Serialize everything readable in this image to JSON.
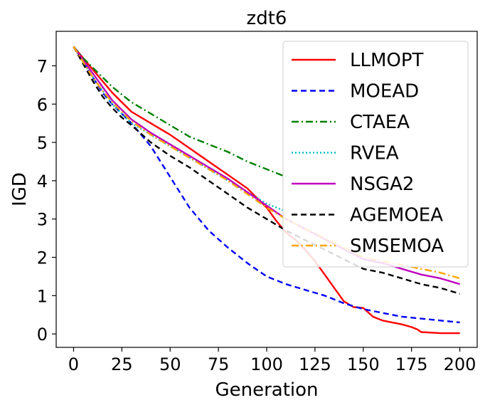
{
  "chart_data": {
    "type": "line",
    "title": "zdt6",
    "xlabel": "Generation",
    "ylabel": "IGD",
    "xlim": [
      -9,
      209
    ],
    "ylim": [
      -0.35,
      7.9
    ],
    "xticks": [
      0,
      25,
      50,
      75,
      100,
      125,
      150,
      175,
      200
    ],
    "yticks": [
      0,
      1,
      2,
      3,
      4,
      5,
      6,
      7
    ],
    "legend_position": "upper right",
    "series": [
      {
        "name": "LLMOPT",
        "color": "#ff0000",
        "dash": "solid",
        "x": [
          0,
          5,
          10,
          15,
          20,
          25,
          30,
          40,
          50,
          60,
          70,
          80,
          90,
          100,
          105,
          110,
          115,
          120,
          125,
          130,
          135,
          140,
          145,
          150,
          155,
          160,
          170,
          175,
          178,
          180,
          190,
          200
        ],
        "y": [
          7.5,
          7.2,
          6.9,
          6.6,
          6.3,
          6.05,
          5.8,
          5.5,
          5.2,
          4.85,
          4.5,
          4.15,
          3.8,
          3.3,
          2.95,
          2.65,
          2.45,
          2.2,
          1.9,
          1.55,
          1.2,
          0.85,
          0.7,
          0.68,
          0.45,
          0.35,
          0.25,
          0.18,
          0.12,
          0.05,
          0.02,
          0.02
        ]
      },
      {
        "name": "MOEAD",
        "color": "#0000ff",
        "dash": "dashed",
        "x": [
          0,
          5,
          10,
          15,
          20,
          25,
          30,
          40,
          50,
          60,
          70,
          80,
          90,
          100,
          110,
          120,
          130,
          140,
          150,
          160,
          170,
          180,
          190,
          200
        ],
        "y": [
          7.5,
          7.1,
          6.7,
          6.3,
          6.0,
          5.75,
          5.5,
          4.9,
          4.1,
          3.3,
          2.7,
          2.25,
          1.85,
          1.5,
          1.3,
          1.15,
          1.0,
          0.8,
          0.65,
          0.55,
          0.45,
          0.4,
          0.35,
          0.3
        ]
      },
      {
        "name": "CTAEA",
        "color": "#008000",
        "dash": "dashdot",
        "x": [
          0,
          5,
          10,
          15,
          20,
          25,
          30,
          40,
          50,
          60,
          70,
          80,
          90,
          100,
          110
        ],
        "y": [
          7.5,
          7.2,
          6.95,
          6.7,
          6.45,
          6.25,
          6.05,
          5.75,
          5.45,
          5.15,
          4.95,
          4.75,
          4.5,
          4.3,
          4.1
        ]
      },
      {
        "name": "RVEA",
        "color": "#00bfbf",
        "dash": "dotted",
        "x": [
          0,
          5,
          10,
          15,
          20,
          25,
          30,
          40,
          50,
          60,
          70,
          80,
          90,
          100,
          110
        ],
        "y": [
          7.5,
          7.1,
          6.7,
          6.35,
          6.0,
          5.75,
          5.5,
          5.2,
          4.9,
          4.6,
          4.3,
          4.0,
          3.7,
          3.4,
          3.2
        ]
      },
      {
        "name": "NSGA2",
        "color": "#bf00bf",
        "dash": "solid",
        "x": [
          0,
          5,
          10,
          15,
          20,
          25,
          30,
          40,
          50,
          60,
          70,
          80,
          90,
          100,
          110,
          150,
          160,
          170,
          180,
          190,
          200
        ],
        "y": [
          7.5,
          7.15,
          6.8,
          6.45,
          6.1,
          5.85,
          5.6,
          5.25,
          4.95,
          4.65,
          4.35,
          4.05,
          3.7,
          3.35,
          3.0,
          1.95,
          1.85,
          1.7,
          1.55,
          1.45,
          1.3
        ]
      },
      {
        "name": "AGEMOEA",
        "color": "#000000",
        "dash": "dashed",
        "x": [
          0,
          5,
          10,
          15,
          20,
          25,
          30,
          40,
          50,
          60,
          70,
          80,
          90,
          100,
          110,
          150,
          160,
          170,
          180,
          190,
          200
        ],
        "y": [
          7.5,
          7.05,
          6.6,
          6.2,
          5.9,
          5.65,
          5.45,
          5.0,
          4.65,
          4.35,
          4.0,
          3.65,
          3.3,
          3.0,
          2.7,
          1.7,
          1.6,
          1.45,
          1.3,
          1.2,
          1.05
        ]
      },
      {
        "name": "SMSEMOA",
        "color": "#ffa500",
        "dash": "dashdot",
        "x": [
          0,
          5,
          10,
          15,
          20,
          25,
          30,
          40,
          50,
          60,
          70,
          80,
          90,
          100,
          110,
          150,
          160,
          170,
          180,
          190,
          200
        ],
        "y": [
          7.5,
          7.1,
          6.7,
          6.35,
          6.05,
          5.8,
          5.55,
          5.2,
          4.9,
          4.6,
          4.3,
          4.0,
          3.65,
          3.3,
          3.0,
          2.0,
          1.9,
          1.8,
          1.7,
          1.6,
          1.45
        ]
      }
    ]
  }
}
